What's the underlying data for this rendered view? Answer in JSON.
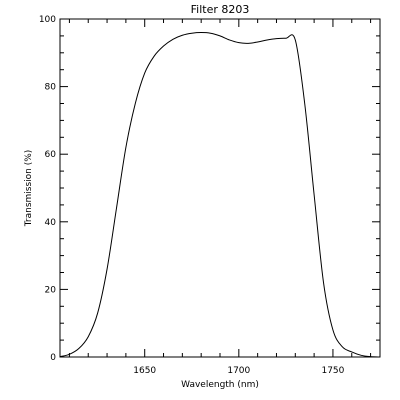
{
  "chart_data": {
    "type": "line",
    "title": "Filter 8203",
    "xlabel": "Wavelength (nm)",
    "ylabel": "Transmission (%)",
    "xlim": [
      1605,
      1775
    ],
    "ylim": [
      0,
      100
    ],
    "grid": false,
    "legend": "none",
    "line_color": "#000000",
    "x_ticks": [
      1650,
      1700,
      1750
    ],
    "x_tick_labels": [
      "1650",
      "1700",
      "1750"
    ],
    "y_ticks": [
      0,
      20,
      40,
      60,
      80,
      100
    ],
    "y_tick_labels": [
      "0",
      "20",
      "40",
      "60",
      "80",
      "100"
    ],
    "series": [
      {
        "x": [
          1605,
          1610,
          1615,
          1620,
          1625,
          1630,
          1635,
          1640,
          1645,
          1650,
          1655,
          1660,
          1665,
          1670,
          1675,
          1680,
          1685,
          1690,
          1695,
          1700,
          1705,
          1710,
          1715,
          1720,
          1725,
          1730,
          1735,
          1740,
          1745,
          1750,
          1755,
          1760,
          1765,
          1770,
          1775
        ],
        "y": [
          0.1,
          0.8,
          2.5,
          6,
          13,
          26,
          44,
          62,
          75,
          84,
          89,
          92,
          94,
          95.2,
          95.8,
          96,
          95.8,
          95,
          93.8,
          93,
          92.8,
          93.2,
          93.8,
          94.2,
          94.3,
          93.8,
          75,
          48,
          22,
          8,
          3,
          1.5,
          0.5,
          0.1,
          0
        ]
      }
    ]
  }
}
